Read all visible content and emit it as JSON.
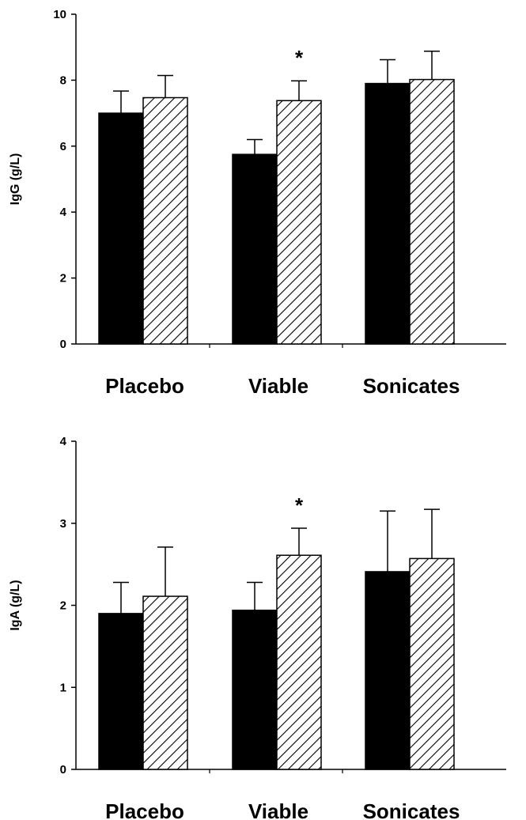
{
  "chart_data": [
    {
      "type": "bar",
      "categories": [
        "Placebo",
        "Viable",
        "Sonicates"
      ],
      "ylabel": "IgG (g/L)",
      "ylim": [
        0,
        10
      ],
      "yticks": [
        0,
        2,
        4,
        6,
        8,
        10
      ],
      "grid": false,
      "legend": "none",
      "series": [
        {
          "fill": "solid",
          "color": "#000000",
          "values": [
            7.0,
            5.75,
            7.9
          ],
          "error": [
            0.67,
            0.45,
            0.72
          ]
        },
        {
          "fill": "hatched",
          "color": "#ffffff",
          "values": [
            7.47,
            7.38,
            8.02
          ],
          "error": [
            0.67,
            0.6,
            0.86
          ]
        }
      ],
      "annotations": [
        {
          "text": "*",
          "category": "Viable",
          "series": 1
        }
      ]
    },
    {
      "type": "bar",
      "categories": [
        "Placebo",
        "Viable",
        "Sonicates"
      ],
      "ylabel": "IgA (g/L)",
      "ylim": [
        0,
        4
      ],
      "yticks": [
        0,
        1,
        2,
        3,
        4
      ],
      "grid": false,
      "legend": "none",
      "series": [
        {
          "fill": "solid",
          "color": "#000000",
          "values": [
            1.9,
            1.94,
            2.41
          ],
          "error": [
            0.38,
            0.34,
            0.74
          ]
        },
        {
          "fill": "hatched",
          "color": "#ffffff",
          "values": [
            2.11,
            2.61,
            2.57
          ],
          "error": [
            0.6,
            0.33,
            0.6
          ]
        }
      ],
      "annotations": [
        {
          "text": "*",
          "category": "Viable",
          "series": 1
        }
      ]
    }
  ]
}
